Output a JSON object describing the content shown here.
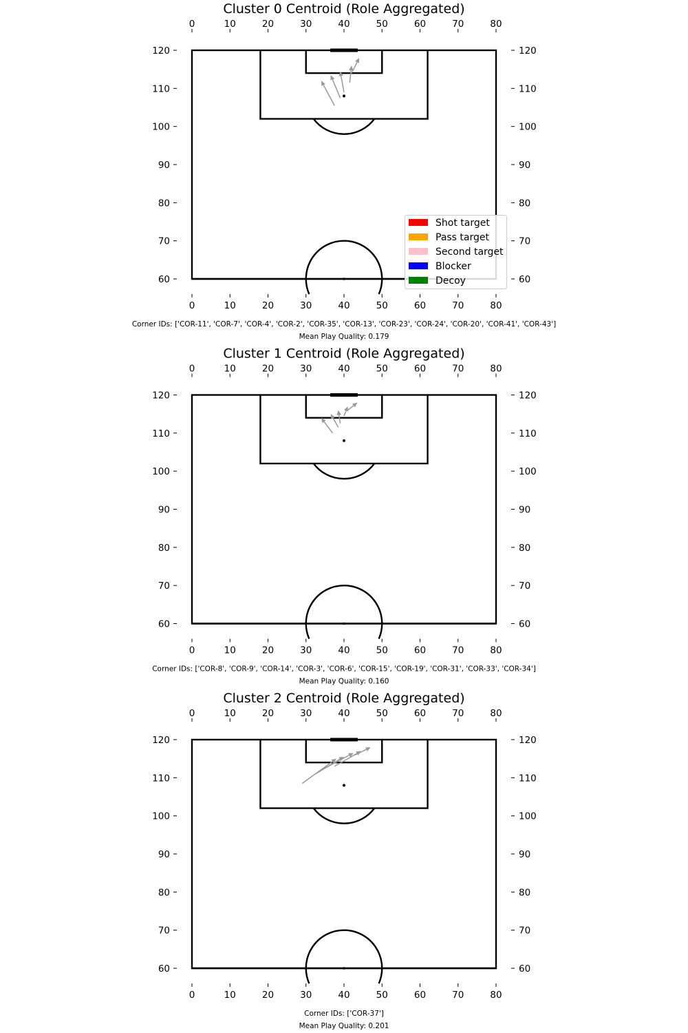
{
  "chart_data": [
    {
      "type": "scatter",
      "title": "Cluster 0 Centroid (Role Aggregated)",
      "xlim": [
        0,
        80
      ],
      "ylim": [
        60,
        120
      ],
      "x_ticks": [
        "0",
        "10",
        "20",
        "30",
        "40",
        "50",
        "60",
        "70",
        "80"
      ],
      "y_ticks": [
        "60",
        "70",
        "80",
        "90",
        "100",
        "110",
        "120"
      ],
      "arrows": [
        {
          "from": [
            37.5,
            105.5
          ],
          "to": [
            34.0,
            112.0
          ]
        },
        {
          "from": [
            39.0,
            107.5
          ],
          "to": [
            36.5,
            113.5
          ]
        },
        {
          "from": [
            40.0,
            109.0
          ],
          "to": [
            39.0,
            114.5
          ]
        },
        {
          "from": [
            41.5,
            111.5
          ],
          "to": [
            42.0,
            116.0
          ]
        },
        {
          "from": [
            42.0,
            114.0
          ],
          "to": [
            44.0,
            118.0
          ]
        }
      ],
      "legend": {
        "placement": "lower-right",
        "entries": [
          {
            "label": "Shot target",
            "color": "#ff0000"
          },
          {
            "label": "Pass target",
            "color": "#ffa500"
          },
          {
            "label": "Second target",
            "color": "#ffc0cb"
          },
          {
            "label": "Blocker",
            "color": "#0000ff"
          },
          {
            "label": "Decoy",
            "color": "#008000"
          }
        ]
      },
      "corner_ids": "Corner IDs: ['COR-11', 'COR-7', 'COR-4', 'COR-2', 'COR-35', 'COR-13', 'COR-23', 'COR-24', 'COR-20', 'COR-41', 'COR-43']",
      "mean_quality": "Mean Play Quality: 0.179"
    },
    {
      "type": "scatter",
      "title": "Cluster 1 Centroid (Role Aggregated)",
      "xlim": [
        0,
        80
      ],
      "ylim": [
        60,
        120
      ],
      "x_ticks": [
        "0",
        "10",
        "20",
        "30",
        "40",
        "50",
        "60",
        "70",
        "80"
      ],
      "y_ticks": [
        "60",
        "70",
        "80",
        "90",
        "100",
        "110",
        "120"
      ],
      "arrows": [
        {
          "from": [
            37.0,
            110.0
          ],
          "to": [
            34.0,
            114.0
          ]
        },
        {
          "from": [
            38.5,
            111.5
          ],
          "to": [
            36.5,
            115.0
          ]
        },
        {
          "from": [
            39.0,
            112.5
          ],
          "to": [
            38.5,
            116.0
          ]
        },
        {
          "from": [
            40.0,
            114.5
          ],
          "to": [
            41.0,
            117.0
          ]
        },
        {
          "from": [
            41.0,
            116.0
          ],
          "to": [
            43.5,
            118.0
          ]
        }
      ],
      "legend": null,
      "corner_ids": "Corner IDs: ['COR-8', 'COR-9', 'COR-14', 'COR-3', 'COR-6', 'COR-15', 'COR-19', 'COR-31', 'COR-33', 'COR-34']",
      "mean_quality": "Mean Play Quality: 0.160"
    },
    {
      "type": "scatter",
      "title": "Cluster 2 Centroid (Role Aggregated)",
      "xlim": [
        0,
        80
      ],
      "ylim": [
        60,
        120
      ],
      "x_ticks": [
        "0",
        "10",
        "20",
        "30",
        "40",
        "50",
        "60",
        "70",
        "80"
      ],
      "y_ticks": [
        "60",
        "70",
        "80",
        "90",
        "100",
        "110",
        "120"
      ],
      "arrows": [
        {
          "from": [
            29.0,
            108.5
          ],
          "to": [
            38.0,
            115.0
          ]
        },
        {
          "from": [
            32.5,
            111.0
          ],
          "to": [
            40.0,
            115.5
          ]
        },
        {
          "from": [
            34.0,
            112.0
          ],
          "to": [
            42.5,
            116.5
          ]
        },
        {
          "from": [
            37.5,
            113.0
          ],
          "to": [
            44.5,
            117.0
          ]
        },
        {
          "from": [
            43.0,
            116.0
          ],
          "to": [
            47.0,
            118.0
          ]
        }
      ],
      "legend": null,
      "corner_ids": "Corner IDs: ['COR-37']",
      "mean_quality": "Mean Play Quality: 0.201"
    }
  ],
  "colors": {
    "arrow": "#999999",
    "pitch_line": "#000000"
  }
}
